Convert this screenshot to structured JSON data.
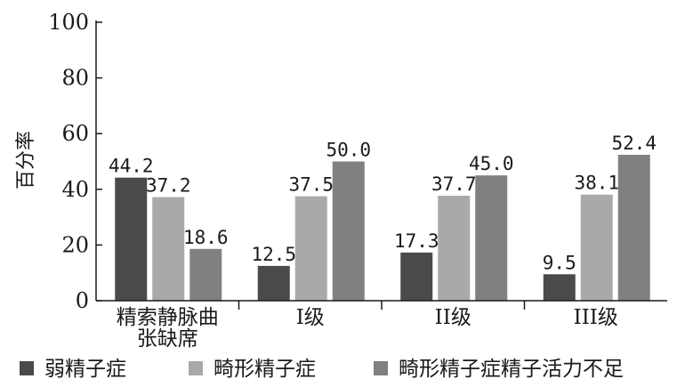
{
  "chart_data": {
    "type": "bar",
    "ylabel": "百分率",
    "ylim": [
      0,
      100
    ],
    "yticks": [
      0,
      20,
      40,
      60,
      80,
      100
    ],
    "grid": false,
    "legend_position": "bottom",
    "categories": [
      [
        "精索静脉曲",
        "张缺席"
      ],
      [
        "I级"
      ],
      [
        "II级"
      ],
      [
        "III级"
      ]
    ],
    "series": [
      {
        "name": "弱精子症",
        "color": "#4a4a4d",
        "values": [
          44.2,
          12.5,
          17.3,
          9.5
        ]
      },
      {
        "name": "畸形精子症",
        "color": "#a9a9ab",
        "values": [
          37.2,
          37.5,
          37.7,
          38.1
        ]
      },
      {
        "name": "畸形精子症精子活力不足",
        "color": "#808083",
        "values": [
          18.6,
          50.0,
          45.0,
          52.4
        ]
      }
    ]
  }
}
